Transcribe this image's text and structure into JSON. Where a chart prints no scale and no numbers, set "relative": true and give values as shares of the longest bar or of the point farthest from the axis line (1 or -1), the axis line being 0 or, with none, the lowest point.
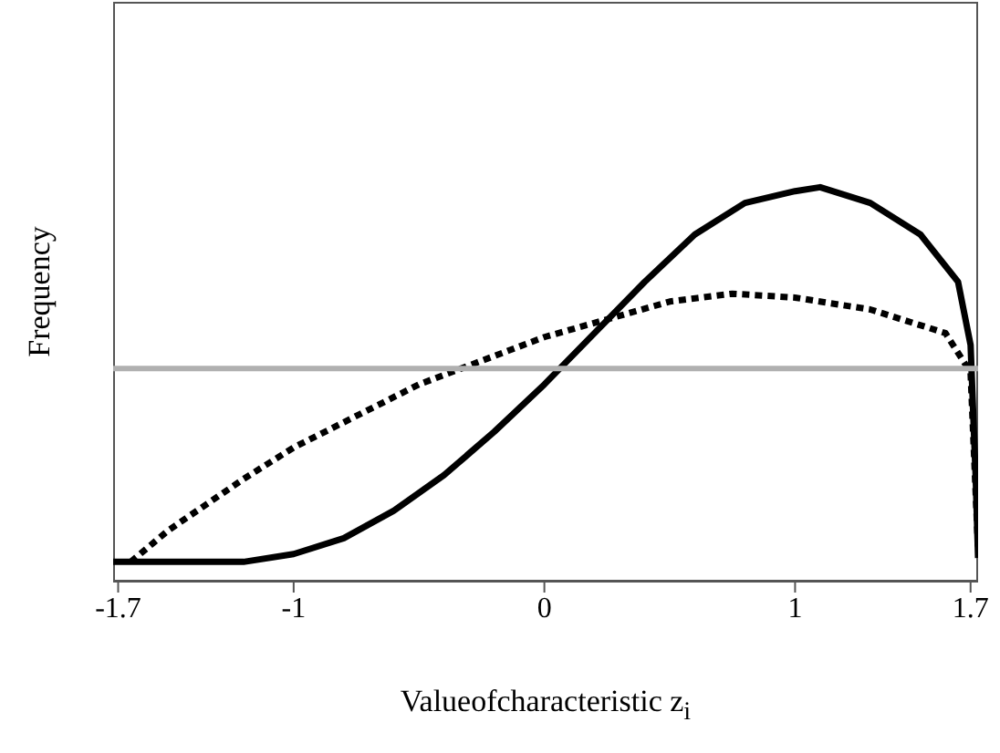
{
  "chart_data": {
    "type": "line",
    "relative": true,
    "xlabel": "Valueofcharacteristic z$_{i}$",
    "ylabel": "Frequency",
    "xlim": [
      -1.72,
      1.73
    ],
    "xticks": [
      -1.7,
      -1,
      0,
      1,
      1.7
    ],
    "marker": "none",
    "series": [
      {
        "color": "#000000",
        "line_style": "solid",
        "x": [
          -1.72,
          -1.2,
          -1.0,
          -0.8,
          -0.6,
          -0.4,
          -0.2,
          0,
          0.2,
          0.4,
          0.6,
          0.8,
          1.0,
          1.1,
          1.3,
          1.5,
          1.65,
          1.7,
          1.72,
          1.73
        ],
        "values": [
          0.05,
          0.05,
          0.07,
          0.11,
          0.18,
          0.27,
          0.38,
          0.5,
          0.63,
          0.76,
          0.88,
          0.96,
          0.99,
          1,
          0.96,
          0.88,
          0.76,
          0.6,
          0.27,
          0.06
        ]
      },
      {
        "color": "#000000",
        "line_style": "dotted",
        "x": [
          -1.65,
          -1.5,
          -1.2,
          -1.0,
          -0.5,
          0,
          0.5,
          0.75,
          1.0,
          1.3,
          1.6,
          1.7,
          1.73
        ],
        "values": [
          0.05,
          0.13,
          0.26,
          0.34,
          0.5,
          0.62,
          0.71,
          0.73,
          0.72,
          0.69,
          0.63,
          0.53,
          0.08
        ]
      },
      {
        "color": "#b0b0b0",
        "line_style": "solid",
        "x": [
          -1.72,
          1.73
        ],
        "values": [
          0.54,
          0.54
        ]
      }
    ]
  }
}
